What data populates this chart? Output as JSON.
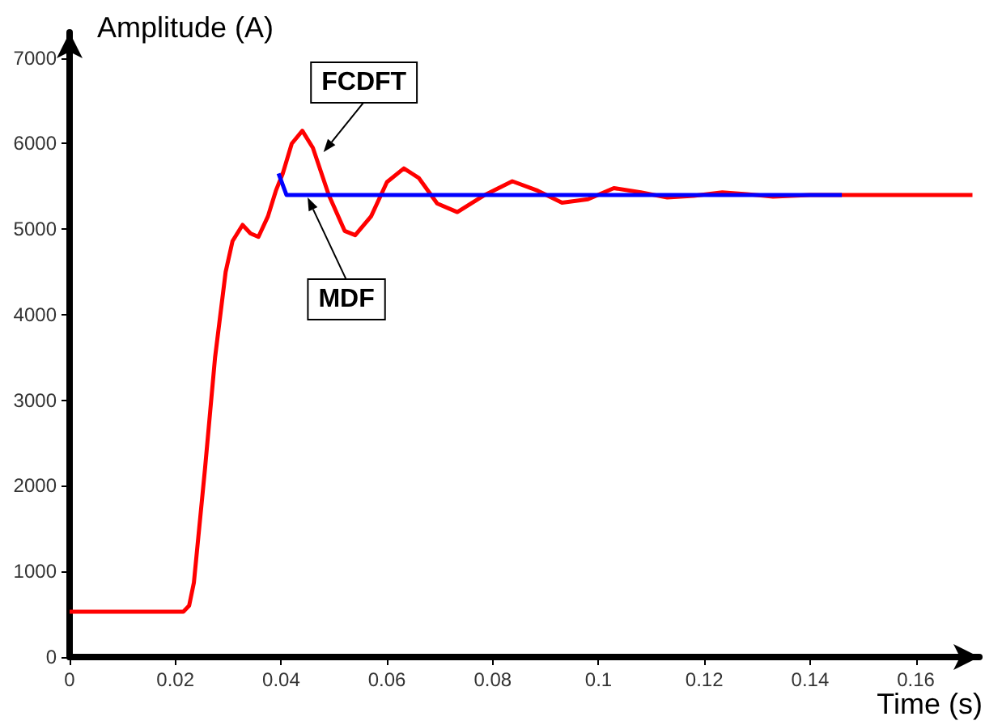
{
  "chart_data": {
    "type": "line",
    "xlabel": "Time (s)",
    "ylabel": "Amplitude (A)",
    "xlim": [
      0,
      0.172
    ],
    "ylim": [
      0,
      7300
    ],
    "xticks": [
      0,
      0.02,
      0.04,
      0.06,
      0.08,
      0.1,
      0.12,
      0.14,
      0.16
    ],
    "yticks": [
      0,
      1000,
      2000,
      3000,
      4000,
      5000,
      6000,
      7000
    ],
    "grid": false,
    "legend": false,
    "marker": "none",
    "line_style": "solid",
    "annotations": [
      {
        "text": "FCDFT",
        "x": 0.048,
        "y": 5900
      },
      {
        "text": "MDF",
        "x": 0.045,
        "y": 5370
      }
    ],
    "series": [
      {
        "color": "#ff0000",
        "x": [
          0,
          0.0215,
          0.0226,
          0.0235,
          0.0256,
          0.0275,
          0.0295,
          0.0308,
          0.0327,
          0.0342,
          0.0357,
          0.0375,
          0.039,
          0.0403,
          0.042,
          0.044,
          0.046,
          0.049,
          0.052,
          0.054,
          0.057,
          0.06,
          0.0632,
          0.066,
          0.0695,
          0.0733,
          0.0785,
          0.0837,
          0.0885,
          0.0931,
          0.098,
          0.1029,
          0.108,
          0.113,
          0.118,
          0.1234,
          0.128,
          0.133,
          0.14,
          0.1707
        ],
        "values": [
          530,
          530,
          600,
          870,
          2200,
          3500,
          4500,
          4860,
          5050,
          4950,
          4910,
          5150,
          5450,
          5650,
          6000,
          6150,
          5950,
          5400,
          4980,
          4930,
          5150,
          5550,
          5710,
          5600,
          5300,
          5200,
          5400,
          5560,
          5450,
          5310,
          5350,
          5480,
          5430,
          5370,
          5390,
          5430,
          5410,
          5380,
          5400,
          5400
        ]
      },
      {
        "color": "#0000ff",
        "x": [
          0.0395,
          0.041,
          0.146
        ],
        "values": [
          5650,
          5400,
          5400
        ]
      }
    ]
  }
}
